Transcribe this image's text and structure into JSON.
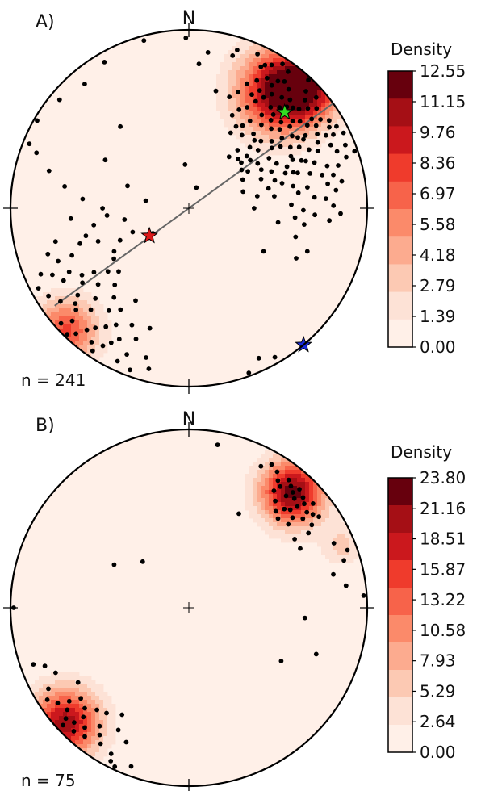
{
  "chart_data": [
    {
      "type": "stereonet-density",
      "panel_label": "A)",
      "north_label": "N",
      "n_label": "n = 241",
      "colorbar": {
        "title": "Density",
        "ticks": [
          "12.55",
          "11.15",
          "9.76",
          "8.36",
          "6.97",
          "5.58",
          "4.18",
          "2.79",
          "1.39",
          "0.00"
        ],
        "colors": [
          "#67000d",
          "#a50f15",
          "#cb181d",
          "#ef3b2c",
          "#f7634a",
          "#fb8a6a",
          "#fcab8f",
          "#fcc9b3",
          "#fde2d6",
          "#fff0e8"
        ]
      },
      "great_circle": {
        "trend_deg": 54,
        "label": ""
      },
      "stars": [
        {
          "name": "green",
          "trend_deg": 45,
          "plunge_deg": 25,
          "color": "#33dd22"
        },
        {
          "name": "red",
          "trend_deg": 235,
          "plunge_deg": 68,
          "color": "#dd1a1a"
        },
        {
          "name": "blue",
          "trend_deg": 140,
          "plunge_deg": 0,
          "color": "#1a2cdd"
        }
      ],
      "density_blobs": [
        {
          "trend_deg": 38,
          "plunge_deg": 18,
          "spread": 0.17,
          "weight": 1.0
        },
        {
          "trend_deg": 225,
          "plunge_deg": 3,
          "spread": 0.13,
          "weight": 0.65
        }
      ],
      "poles": [
        [
          359,
          5
        ],
        [
          4,
          20
        ],
        [
          7,
          13
        ],
        [
          16,
          12
        ],
        [
          17,
          8
        ],
        [
          13,
          33
        ],
        [
          355,
          70
        ],
        [
          28,
          10
        ],
        [
          35,
          14
        ],
        [
          37,
          12
        ],
        [
          40,
          14
        ],
        [
          43,
          18
        ],
        [
          48,
          18
        ],
        [
          44,
          22
        ],
        [
          40,
          20
        ],
        [
          36,
          22
        ],
        [
          34,
          26
        ],
        [
          50,
          25
        ],
        [
          52,
          22
        ],
        [
          55,
          20
        ],
        [
          58,
          24
        ],
        [
          57,
          28
        ],
        [
          60,
          18
        ],
        [
          62,
          14
        ],
        [
          63,
          20
        ],
        [
          64,
          26
        ],
        [
          66,
          22
        ],
        [
          68,
          30
        ],
        [
          70,
          26
        ],
        [
          45,
          26
        ],
        [
          47,
          30
        ],
        [
          49,
          33
        ],
        [
          42,
          30
        ],
        [
          39,
          28
        ],
        [
          32,
          30
        ],
        [
          30,
          35
        ],
        [
          27,
          38
        ],
        [
          25,
          42
        ],
        [
          31,
          24
        ],
        [
          29,
          28
        ],
        [
          53,
          35
        ],
        [
          56,
          38
        ],
        [
          59,
          34
        ],
        [
          61,
          30
        ],
        [
          65,
          36
        ],
        [
          67,
          40
        ],
        [
          70,
          42
        ],
        [
          72,
          36
        ],
        [
          74,
          30
        ],
        [
          78,
          40
        ],
        [
          75,
          45
        ],
        [
          80,
          33
        ],
        [
          82,
          38
        ],
        [
          85,
          30
        ],
        [
          88,
          42
        ],
        [
          91,
          36
        ],
        [
          93,
          30
        ],
        [
          95,
          40
        ],
        [
          98,
          35
        ],
        [
          105,
          38
        ],
        [
          110,
          30
        ],
        [
          115,
          34
        ],
        [
          99,
          48
        ],
        [
          72,
          48
        ],
        [
          63,
          44
        ],
        [
          58,
          46
        ],
        [
          66,
          48
        ],
        [
          54,
          42
        ],
        [
          51,
          40
        ],
        [
          46,
          36
        ],
        [
          43,
          33
        ],
        [
          41,
          38
        ],
        [
          38,
          34
        ],
        [
          35,
          40
        ],
        [
          33,
          44
        ],
        [
          30,
          46
        ],
        [
          29,
          50
        ],
        [
          47,
          44
        ],
        [
          44,
          46
        ],
        [
          50,
          48
        ],
        [
          62,
          52
        ],
        [
          68,
          54
        ],
        [
          76,
          52
        ],
        [
          82,
          50
        ],
        [
          57,
          52
        ],
        [
          52,
          54
        ],
        [
          48,
          54
        ],
        [
          45,
          58
        ],
        [
          40,
          55
        ],
        [
          38,
          60
        ],
        [
          47,
          12
        ],
        [
          45,
          8
        ],
        [
          49,
          6
        ],
        [
          52,
          10
        ],
        [
          56,
          12
        ],
        [
          58,
          8
        ],
        [
          61,
          6
        ],
        [
          63,
          10
        ],
        [
          66,
          14
        ],
        [
          69,
          12
        ],
        [
          72,
          8
        ],
        [
          74,
          14
        ],
        [
          77,
          18
        ],
        [
          80,
          22
        ],
        [
          34,
          18
        ],
        [
          31,
          16
        ],
        [
          28,
          20
        ],
        [
          25,
          24
        ],
        [
          23,
          30
        ],
        [
          20,
          34
        ],
        [
          50,
          14
        ],
        [
          54,
          16
        ],
        [
          57,
          16
        ],
        [
          60,
          10
        ],
        [
          64,
          4
        ],
        [
          68,
          6
        ],
        [
          71,
          2
        ],
        [
          73,
          20
        ],
        [
          76,
          24
        ],
        [
          80,
          14
        ],
        [
          83,
          18
        ],
        [
          86,
          24
        ],
        [
          89,
          20
        ],
        [
          92,
          16
        ],
        [
          95,
          22
        ],
        [
          24,
          6
        ],
        [
          27,
          12
        ],
        [
          30,
          8
        ],
        [
          33,
          4
        ],
        [
          36,
          6
        ],
        [
          43,
          2
        ],
        [
          42,
          25
        ],
        [
          46,
          20
        ],
        [
          51,
          28
        ],
        [
          55,
          30
        ],
        [
          59,
          26
        ],
        [
          63,
          36
        ],
        [
          67,
          32
        ],
        [
          71,
          38
        ],
        [
          36,
          48
        ],
        [
          41,
          44
        ],
        [
          45,
          50
        ],
        [
          49,
          58
        ],
        [
          54,
          60
        ],
        [
          58,
          58
        ],
        [
          62,
          62
        ],
        [
          73,
          64
        ],
        [
          80,
          58
        ],
        [
          235,
          70
        ],
        [
          240,
          50
        ],
        [
          245,
          55
        ],
        [
          250,
          45
        ],
        [
          247,
          62
        ],
        [
          255,
          40
        ],
        [
          260,
          45
        ],
        [
          265,
          34
        ],
        [
          252,
          36
        ],
        [
          248,
          30
        ],
        [
          242,
          25
        ],
        [
          238,
          30
        ],
        [
          235,
          28
        ],
        [
          232,
          22
        ],
        [
          228,
          16
        ],
        [
          226,
          10
        ],
        [
          222,
          6
        ],
        [
          220,
          12
        ],
        [
          216,
          8
        ],
        [
          214,
          4
        ],
        [
          212,
          10
        ],
        [
          210,
          14
        ],
        [
          230,
          34
        ],
        [
          226,
          28
        ],
        [
          224,
          22
        ],
        [
          236,
          36
        ],
        [
          240,
          20
        ],
        [
          244,
          16
        ],
        [
          248,
          22
        ],
        [
          252,
          18
        ],
        [
          256,
          24
        ],
        [
          230,
          18
        ],
        [
          234,
          12
        ],
        [
          238,
          8
        ],
        [
          242,
          5
        ],
        [
          246,
          10
        ],
        [
          228,
          4
        ],
        [
          224,
          2
        ],
        [
          218,
          16
        ],
        [
          215,
          20
        ],
        [
          212,
          24
        ],
        [
          208,
          18
        ],
        [
          205,
          6
        ],
        [
          203,
          12
        ],
        [
          200,
          4
        ],
        [
          232,
          42
        ],
        [
          236,
          48
        ],
        [
          228,
          46
        ],
        [
          224,
          40
        ],
        [
          220,
          35
        ],
        [
          218,
          28
        ],
        [
          214,
          32
        ],
        [
          210,
          40
        ],
        [
          206,
          28
        ],
        [
          202,
          22
        ],
        [
          198,
          30
        ],
        [
          196,
          14
        ],
        [
          194,
          8
        ],
        [
          260,
          60
        ],
        [
          265,
          52
        ],
        [
          270,
          50
        ],
        [
          275,
          40
        ],
        [
          280,
          30
        ],
        [
          285,
          20
        ],
        [
          290,
          10
        ],
        [
          292,
          4
        ],
        [
          300,
          2
        ],
        [
          310,
          6
        ],
        [
          320,
          10
        ],
        [
          330,
          6
        ],
        [
          345,
          3
        ],
        [
          320,
          40
        ],
        [
          300,
          45
        ],
        [
          290,
          60
        ],
        [
          280,
          70
        ],
        [
          20,
          80
        ],
        [
          90,
          60
        ],
        [
          120,
          50
        ],
        [
          150,
          4
        ],
        [
          155,
          8
        ],
        [
          160,
          2
        ]
      ]
    },
    {
      "type": "stereonet-density",
      "panel_label": "B)",
      "north_label": "N",
      "n_label": "n = 75",
      "colorbar": {
        "title": "Density",
        "ticks": [
          "23.80",
          "21.16",
          "18.51",
          "15.87",
          "13.22",
          "10.58",
          "7.93",
          "5.29",
          "2.64",
          "0.00"
        ],
        "colors": [
          "#67000d",
          "#a50f15",
          "#cb181d",
          "#ef3b2c",
          "#f7634a",
          "#fb8a6a",
          "#fcab8f",
          "#fcc9b3",
          "#fde2d6",
          "#fff0e8"
        ]
      },
      "density_blobs": [
        {
          "trend_deg": 42,
          "plunge_deg": 14,
          "spread": 0.13,
          "weight": 1.0
        },
        {
          "trend_deg": 227,
          "plunge_deg": 6,
          "spread": 0.14,
          "weight": 0.9
        },
        {
          "trend_deg": 68,
          "plunge_deg": 8,
          "spread": 0.08,
          "weight": 0.25
        }
      ],
      "poles": [
        [
          27,
          12
        ],
        [
          30,
          8
        ],
        [
          33,
          10
        ],
        [
          35,
          14
        ],
        [
          37,
          16
        ],
        [
          38,
          10
        ],
        [
          40,
          12
        ],
        [
          41,
          18
        ],
        [
          42,
          14
        ],
        [
          43,
          10
        ],
        [
          44,
          16
        ],
        [
          46,
          12
        ],
        [
          47,
          18
        ],
        [
          48,
          14
        ],
        [
          50,
          10
        ],
        [
          51,
          16
        ],
        [
          52,
          20
        ],
        [
          46,
          22
        ],
        [
          44,
          24
        ],
        [
          49,
          24
        ],
        [
          53,
          14
        ],
        [
          55,
          12
        ],
        [
          56,
          18
        ],
        [
          58,
          22
        ],
        [
          45,
          30
        ],
        [
          42,
          28
        ],
        [
          39,
          24
        ],
        [
          36,
          20
        ],
        [
          50,
          28
        ],
        [
          57,
          30
        ],
        [
          28,
          40
        ],
        [
          62,
          30
        ],
        [
          66,
          12
        ],
        [
          70,
          6
        ],
        [
          73,
          10
        ],
        [
          77,
          18
        ],
        [
          82,
          12
        ],
        [
          86,
          2
        ],
        [
          10,
          8
        ],
        [
          300,
          50
        ],
        [
          315,
          60
        ],
        [
          270,
          2
        ],
        [
          95,
          35
        ],
        [
          110,
          25
        ],
        [
          120,
          40
        ],
        [
          250,
          8
        ],
        [
          248,
          14
        ],
        [
          244,
          18
        ],
        [
          240,
          10
        ],
        [
          237,
          6
        ],
        [
          234,
          10
        ],
        [
          232,
          16
        ],
        [
          230,
          12
        ],
        [
          228,
          8
        ],
        [
          227,
          4
        ],
        [
          225,
          10
        ],
        [
          224,
          16
        ],
        [
          223,
          6
        ],
        [
          221,
          12
        ],
        [
          219,
          8
        ],
        [
          217,
          18
        ],
        [
          215,
          14
        ],
        [
          213,
          10
        ],
        [
          210,
          22
        ],
        [
          207,
          4
        ],
        [
          205,
          18
        ],
        [
          208,
          8
        ],
        [
          230,
          22
        ],
        [
          226,
          20
        ],
        [
          222,
          24
        ],
        [
          212,
          30
        ],
        [
          218,
          26
        ],
        [
          236,
          26
        ],
        [
          205,
          2
        ],
        [
          200,
          6
        ]
      ]
    }
  ]
}
